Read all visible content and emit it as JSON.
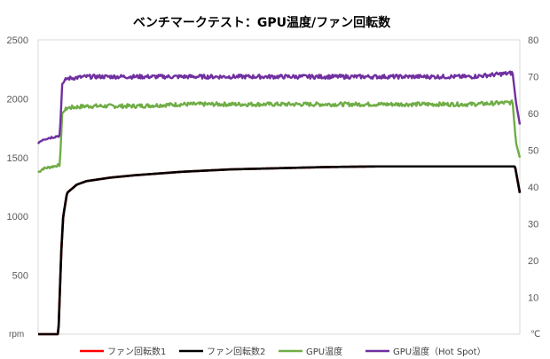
{
  "chart_data": {
    "type": "line",
    "title": "ベンチマークテスト：GPU温度/ファン回転数",
    "y_left": {
      "unit": "rpm",
      "ticks": [
        "2500",
        "2000",
        "1500",
        "1000",
        "500"
      ],
      "ylim": [
        0,
        2500
      ]
    },
    "y_right": {
      "unit": "℃",
      "ticks": [
        "80",
        "70",
        "60",
        "50",
        "40",
        "30",
        "20",
        "10"
      ],
      "ylim": [
        0,
        80
      ]
    },
    "x_range": [
      0,
      100
    ],
    "grid": false,
    "legend_position": "bottom",
    "series": [
      {
        "name": "ファン回転数1",
        "color": "#ff0000",
        "axis": "left",
        "x": [
          0,
          4.2,
          4.8,
          5.2,
          6,
          8,
          10,
          15,
          20,
          30,
          40,
          50,
          60,
          70,
          80,
          90,
          99,
          100
        ],
        "y": [
          0,
          0,
          700,
          1000,
          1200,
          1270,
          1300,
          1330,
          1350,
          1380,
          1400,
          1410,
          1420,
          1425,
          1425,
          1425,
          1425,
          1200
        ]
      },
      {
        "name": "ファン回転数2",
        "color": "#000000",
        "axis": "left",
        "x": [
          0,
          4.2,
          4.8,
          5.2,
          6,
          8,
          10,
          15,
          20,
          30,
          40,
          50,
          60,
          70,
          80,
          90,
          99,
          100
        ],
        "y": [
          0,
          0,
          700,
          1000,
          1200,
          1270,
          1300,
          1330,
          1350,
          1380,
          1400,
          1410,
          1420,
          1425,
          1425,
          1425,
          1425,
          1200
        ]
      },
      {
        "name": "GPU温度",
        "color": "#70ad47",
        "axis": "right",
        "x": [
          0,
          1,
          4.5,
          5,
          6,
          10,
          20,
          30,
          40,
          50,
          60,
          70,
          80,
          90,
          98.5,
          99.2,
          100
        ],
        "y": [
          44,
          45,
          46,
          60,
          61.5,
          62,
          62,
          62.5,
          62.5,
          62.5,
          62.5,
          62.5,
          62.5,
          62.5,
          63,
          52,
          48
        ]
      },
      {
        "name": "GPU温度（Hot Spot）",
        "color": "#7030a0",
        "axis": "right",
        "x": [
          0,
          1,
          4.5,
          5,
          6,
          10,
          20,
          30,
          40,
          50,
          60,
          70,
          80,
          90,
          98.5,
          99.2,
          100
        ],
        "y": [
          52,
          53,
          54,
          68,
          69.5,
          70,
          70,
          70,
          70,
          70,
          70,
          70,
          70,
          70,
          71,
          63,
          57
        ]
      }
    ]
  }
}
